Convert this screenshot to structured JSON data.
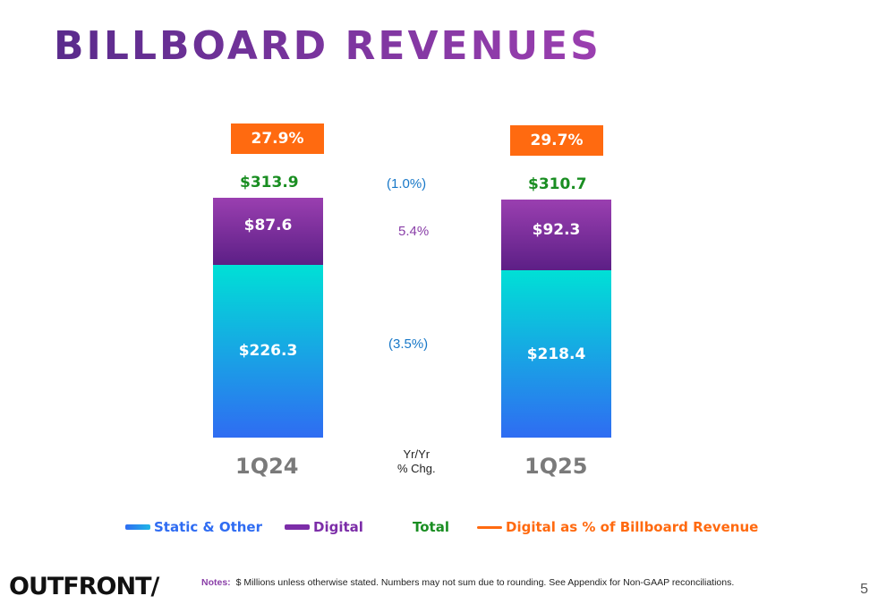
{
  "title": "BILLBOARD REVENUES",
  "chart_data": {
    "type": "bar",
    "stacked": true,
    "categories": [
      "1Q24",
      "1Q25"
    ],
    "series": [
      {
        "name": "Static & Other",
        "values": [
          226.3,
          218.4
        ],
        "labels": [
          "$226.3",
          "$218.4"
        ],
        "color": "#2f6cf2"
      },
      {
        "name": "Digital",
        "values": [
          87.6,
          92.3
        ],
        "labels": [
          "$87.6",
          "$92.3"
        ],
        "color": "#7c2da8"
      }
    ],
    "totals": {
      "name": "Total",
      "values": [
        313.9,
        310.7
      ],
      "labels": [
        "$313.9",
        "$310.7"
      ],
      "color": "#1a8e22"
    },
    "digital_share": {
      "name": "Digital as % of Billboard Revenue",
      "values": [
        27.9,
        29.7
      ],
      "labels": [
        "27.9%",
        "29.7%"
      ],
      "color": "#ff6a10"
    },
    "yoy_change": {
      "total": "(1.0%)",
      "digital": "5.4%",
      "static": "(3.5%)"
    },
    "yoy_header": [
      "Yr/Yr",
      "% Chg."
    ],
    "legend": [
      {
        "label": "Static & Other",
        "color": "#2f6cf2"
      },
      {
        "label": "Digital",
        "color": "#7c2da8"
      },
      {
        "label": "Total",
        "color": "#1a8e22"
      },
      {
        "label": "Digital as % of Billboard Revenue",
        "color": "#ff6a10"
      }
    ]
  },
  "footer": {
    "logo": "OUTFRONT/",
    "notes_label": "Notes:",
    "notes_text": "$ Millions unless otherwise stated. Numbers may not sum due to rounding. See Appendix for Non-GAAP reconciliations.",
    "page_number": "5"
  }
}
